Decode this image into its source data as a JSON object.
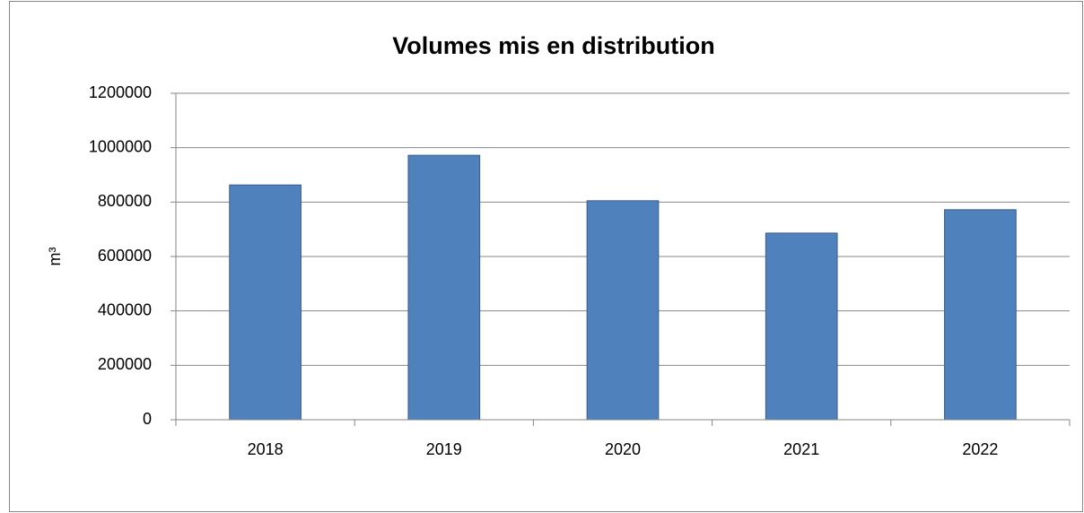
{
  "chart_data": {
    "type": "bar",
    "title": "Volumes mis en distribution",
    "y_label": "m³",
    "categories": [
      "2018",
      "2019",
      "2020",
      "2021",
      "2022"
    ],
    "values": [
      863000,
      972000,
      805000,
      686000,
      772000
    ],
    "color": "#4f81bd",
    "ylim": [
      0,
      1200000
    ],
    "yticks": [
      0,
      200000,
      400000,
      600000,
      800000,
      1000000,
      1200000
    ],
    "grid": true
  }
}
